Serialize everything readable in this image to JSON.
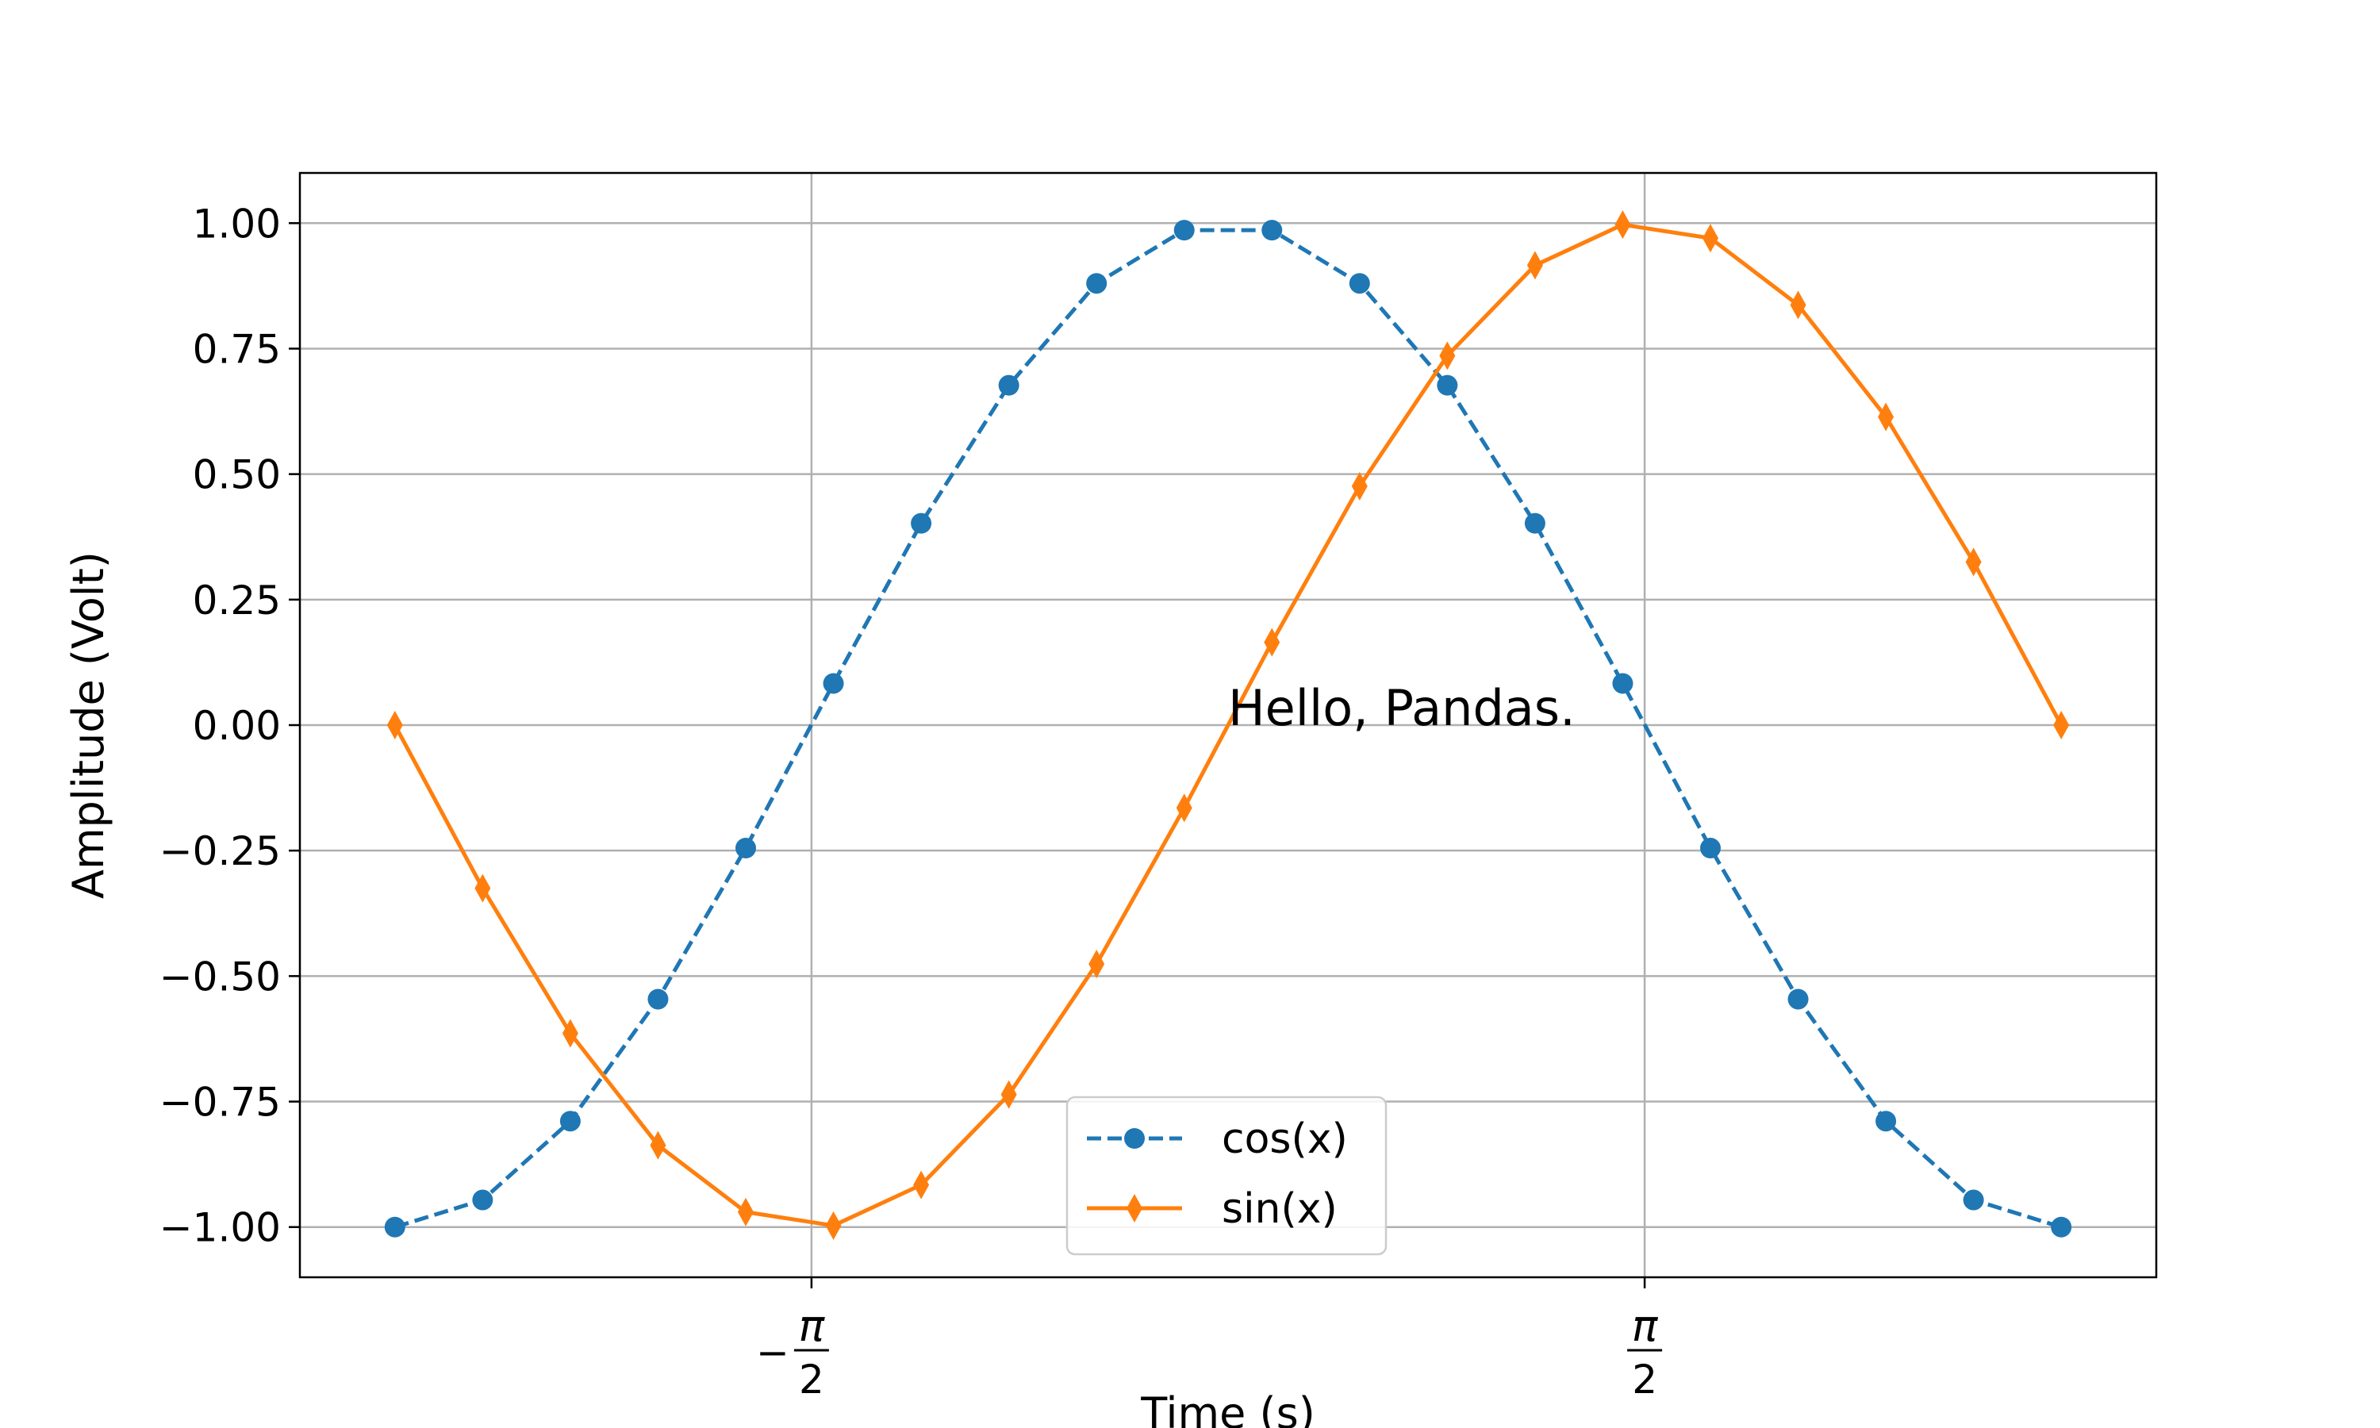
{
  "chart_data": {
    "type": "line",
    "xlabel": "Time (s)",
    "ylabel": "Amplitude (Volt)",
    "xlim": [
      -3.5,
      3.5
    ],
    "ylim": [
      -1.1,
      1.1
    ],
    "grid": true,
    "legend": {
      "placement": "bottom-center",
      "entries": [
        "cos(x)",
        "sin(x)"
      ]
    },
    "annotation": {
      "text": "Hello, Pandas.",
      "x": 0.0,
      "y": 0.0
    },
    "x_ticks": [
      {
        "value": -1.5708,
        "sign": "−",
        "numerator": "π",
        "denominator": "2"
      },
      {
        "value": 1.5708,
        "sign": "",
        "numerator": "π",
        "denominator": "2"
      }
    ],
    "y_ticks": [
      {
        "value": 1.0,
        "label": "1.00"
      },
      {
        "value": 0.75,
        "label": "0.75"
      },
      {
        "value": 0.5,
        "label": "0.50"
      },
      {
        "value": 0.25,
        "label": "0.25"
      },
      {
        "value": 0.0,
        "label": "0.00"
      },
      {
        "value": -0.25,
        "label": "−0.25"
      },
      {
        "value": -0.5,
        "label": "−0.50"
      },
      {
        "value": -0.75,
        "label": "−0.75"
      },
      {
        "value": -1.0,
        "label": "−1.00"
      }
    ],
    "x": [
      -3.1416,
      -2.8109,
      -2.4802,
      -2.1495,
      -1.8188,
      -1.4881,
      -1.1574,
      -0.8267,
      -0.496,
      -0.1653,
      0.1653,
      0.496,
      0.8267,
      1.1574,
      1.4881,
      1.8188,
      2.1495,
      2.4802,
      2.8109,
      3.1416
    ],
    "series": [
      {
        "name": "cos(x)",
        "color": "#1f77b4",
        "linestyle": "dashed",
        "marker": "circle",
        "values": [
          -1.0,
          -0.946,
          -0.789,
          -0.546,
          -0.245,
          0.083,
          0.402,
          0.677,
          0.88,
          0.986,
          0.986,
          0.88,
          0.677,
          0.402,
          0.083,
          -0.245,
          -0.546,
          -0.789,
          -0.946,
          -1.0
        ]
      },
      {
        "name": "sin(x)",
        "color": "#ff7f0e",
        "linestyle": "solid",
        "marker": "diamond",
        "values": [
          0.0,
          -0.325,
          -0.614,
          -0.837,
          -0.97,
          -0.997,
          -0.916,
          -0.736,
          -0.476,
          -0.165,
          0.165,
          0.476,
          0.736,
          0.916,
          0.997,
          0.97,
          0.837,
          0.614,
          0.325,
          0.0
        ]
      }
    ]
  }
}
